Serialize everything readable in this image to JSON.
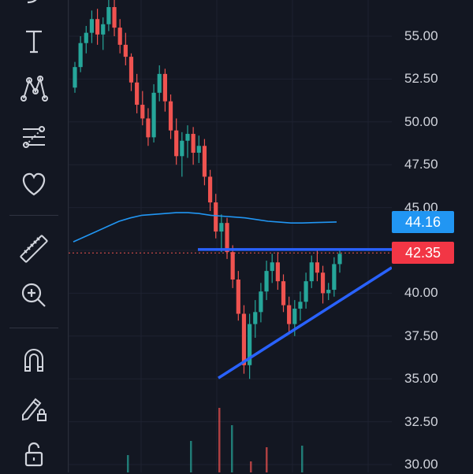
{
  "toolbar": {
    "items": [
      {
        "name": "curve-tool-icon"
      },
      {
        "name": "text-tool-icon"
      },
      {
        "name": "pattern-tool-icon"
      },
      {
        "name": "fib-tool-icon"
      },
      {
        "name": "favorites-heart-icon"
      },
      {
        "name": "ruler-measure-icon"
      },
      {
        "name": "zoom-in-icon"
      },
      {
        "name": "magnet-icon"
      },
      {
        "name": "lock-drawing-icon"
      },
      {
        "name": "lock-icon"
      }
    ]
  },
  "price_axis": {
    "ticks": [
      "55.00",
      "52.50",
      "50.00",
      "47.50",
      "45.00",
      "42.50",
      "40.00",
      "37.50",
      "35.00",
      "32.50",
      "30.00"
    ],
    "ma_label": "44.16",
    "ma_color": "#2196f3",
    "last_price_label": "42.35",
    "last_price_color": "#f23645"
  },
  "colors": {
    "background": "#131722",
    "up": "#26a69a",
    "down": "#ef5350",
    "ma_line": "#2196f3",
    "trendline": "#2962ff"
  },
  "chart_data": {
    "type": "candlestick",
    "ylim": [
      29.5,
      57.5
    ],
    "last_price": 42.35,
    "moving_average_last": 44.16,
    "moving_average": [
      43.0,
      43.3,
      43.6,
      43.9,
      44.2,
      44.4,
      44.55,
      44.6,
      44.65,
      44.7,
      44.7,
      44.65,
      44.55,
      44.5,
      44.45,
      44.4,
      44.3,
      44.2,
      44.15,
      44.1,
      44.1,
      44.12,
      44.14,
      44.16
    ],
    "candles": [
      [
        52.0,
        53.5,
        51.7,
        53.2
      ],
      [
        53.2,
        55.0,
        52.9,
        54.6
      ],
      [
        54.6,
        55.6,
        54.0,
        55.2
      ],
      [
        55.2,
        56.5,
        54.6,
        56.0
      ],
      [
        56.0,
        56.6,
        54.5,
        55.1
      ],
      [
        55.1,
        56.1,
        54.2,
        55.7
      ],
      [
        55.7,
        57.2,
        55.3,
        56.7
      ],
      [
        56.7,
        57.4,
        55.0,
        55.5
      ],
      [
        55.5,
        56.0,
        54.0,
        54.5
      ],
      [
        54.5,
        55.2,
        53.3,
        53.8
      ],
      [
        53.8,
        54.0,
        51.8,
        52.3
      ],
      [
        52.3,
        52.8,
        50.5,
        51.0
      ],
      [
        51.0,
        51.8,
        49.8,
        50.2
      ],
      [
        50.2,
        50.8,
        48.6,
        49.1
      ],
      [
        49.1,
        52.2,
        48.8,
        51.7
      ],
      [
        51.7,
        53.3,
        51.2,
        52.8
      ],
      [
        52.8,
        53.1,
        50.6,
        51.2
      ],
      [
        51.2,
        51.6,
        49.0,
        49.5
      ],
      [
        49.5,
        50.2,
        47.5,
        48.0
      ],
      [
        48.0,
        49.4,
        46.8,
        48.9
      ],
      [
        48.9,
        49.8,
        47.9,
        49.3
      ],
      [
        49.3,
        49.7,
        47.5,
        48.2
      ],
      [
        48.2,
        49.2,
        47.6,
        48.6
      ],
      [
        48.6,
        49.0,
        46.3,
        46.8
      ],
      [
        46.8,
        47.2,
        44.8,
        45.3
      ],
      [
        45.3,
        45.8,
        43.2,
        43.6
      ],
      [
        43.6,
        44.6,
        42.4,
        44.1
      ],
      [
        44.1,
        44.4,
        42.0,
        42.4
      ],
      [
        42.4,
        42.8,
        40.3,
        40.8
      ],
      [
        40.8,
        41.3,
        38.4,
        38.8
      ],
      [
        38.8,
        39.3,
        35.3,
        35.8
      ],
      [
        35.8,
        38.8,
        35.0,
        38.2
      ],
      [
        38.2,
        39.6,
        37.4,
        38.9
      ],
      [
        38.9,
        40.6,
        38.3,
        40.1
      ],
      [
        40.1,
        41.9,
        39.6,
        41.3
      ],
      [
        41.3,
        42.3,
        40.6,
        41.8
      ],
      [
        41.8,
        42.4,
        40.2,
        40.7
      ],
      [
        40.7,
        41.1,
        38.9,
        39.3
      ],
      [
        39.3,
        39.8,
        37.6,
        38.2
      ],
      [
        38.2,
        39.6,
        37.5,
        39.1
      ],
      [
        39.1,
        40.1,
        38.4,
        39.5
      ],
      [
        39.5,
        41.2,
        39.1,
        40.7
      ],
      [
        40.7,
        42.2,
        40.3,
        41.8
      ],
      [
        41.8,
        42.5,
        40.7,
        41.2
      ],
      [
        41.2,
        41.6,
        39.4,
        40.0
      ],
      [
        40.0,
        40.6,
        39.6,
        40.2
      ],
      [
        40.2,
        42.1,
        39.8,
        41.7
      ],
      [
        41.7,
        42.6,
        41.2,
        42.3
      ]
    ]
  }
}
